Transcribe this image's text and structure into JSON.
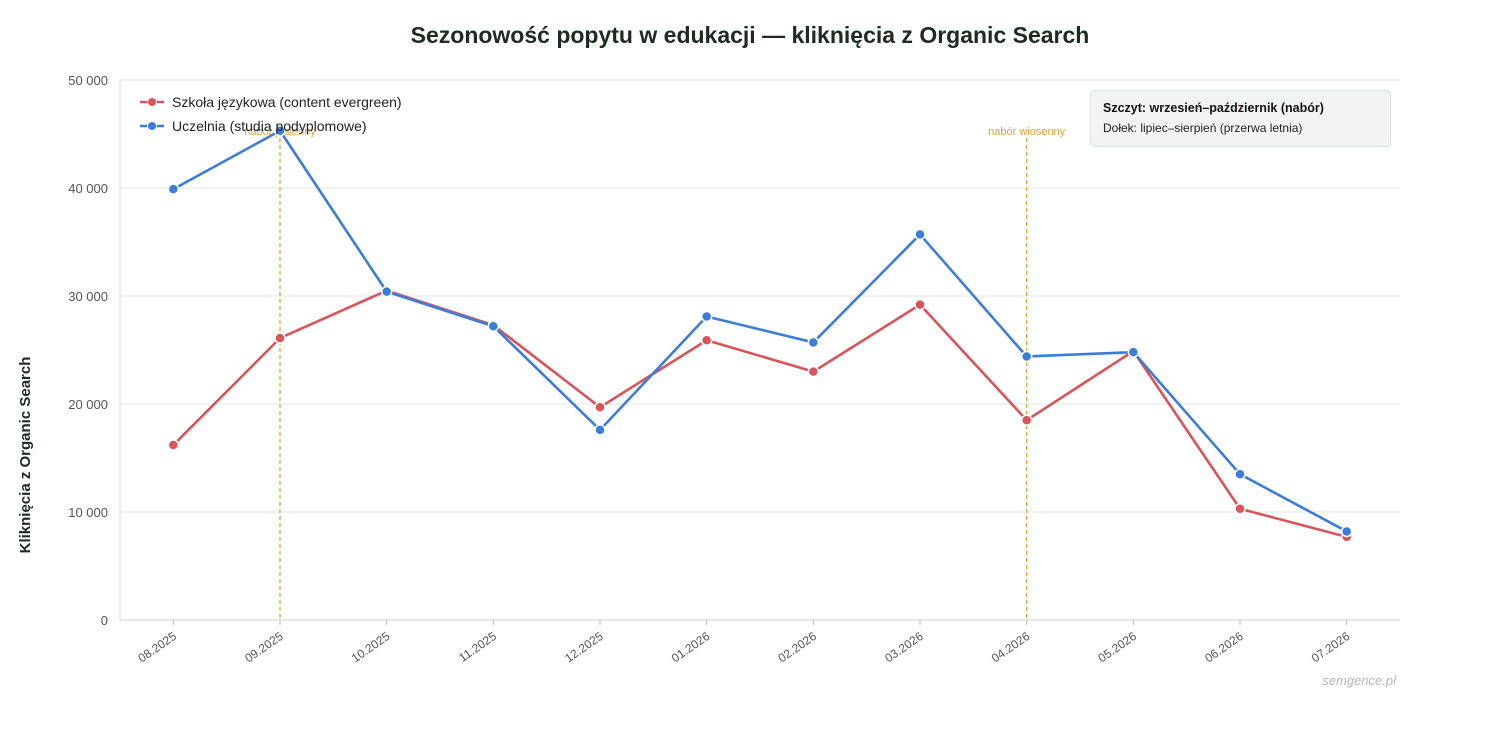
{
  "chart_data": {
    "type": "line",
    "title": "Sezonowość popytu w edukacji — kliknięcia z Organic Search",
    "ylabel": "Kliknięcia z Organic Search",
    "xlabel": "",
    "categories": [
      "08.2025",
      "09.2025",
      "10.2025",
      "11.2025",
      "12.2025",
      "01.2026",
      "02.2026",
      "03.2026",
      "04.2026",
      "05.2026",
      "06.2026",
      "07.2026"
    ],
    "ylim": [
      0,
      50000
    ],
    "yticks": [
      0,
      10000,
      20000,
      30000,
      40000,
      50000
    ],
    "ytick_labels": [
      "0",
      "10 000",
      "20 000",
      "30 000",
      "40 000",
      "50 000"
    ],
    "grid": true,
    "legend_position": "top-left",
    "series": [
      {
        "name": "Szkoła językowa (content evergreen)",
        "color": "#d9545a",
        "values": [
          16200,
          26100,
          30500,
          27300,
          19700,
          25900,
          23000,
          29200,
          18500,
          24900,
          10300,
          7700
        ]
      },
      {
        "name": "Uczelnia (studia podyplomowe)",
        "color": "#3b7dd8",
        "values": [
          39900,
          45300,
          30400,
          27200,
          17600,
          28100,
          25700,
          35700,
          24400,
          24800,
          13500,
          8200
        ]
      }
    ],
    "vlines": [
      {
        "category": "09.2025",
        "label": "nabór jesienny",
        "color": "#e0a33a"
      },
      {
        "category": "04.2026",
        "label": "nabór wiosenny",
        "color": "#e0a33a"
      }
    ],
    "annotation": {
      "title": "Szczyt: wrzesień–październik (nabór)",
      "text": "Dołek: lipiec–sierpień (przerwa letnia)"
    },
    "watermark": "semgence.pl"
  }
}
